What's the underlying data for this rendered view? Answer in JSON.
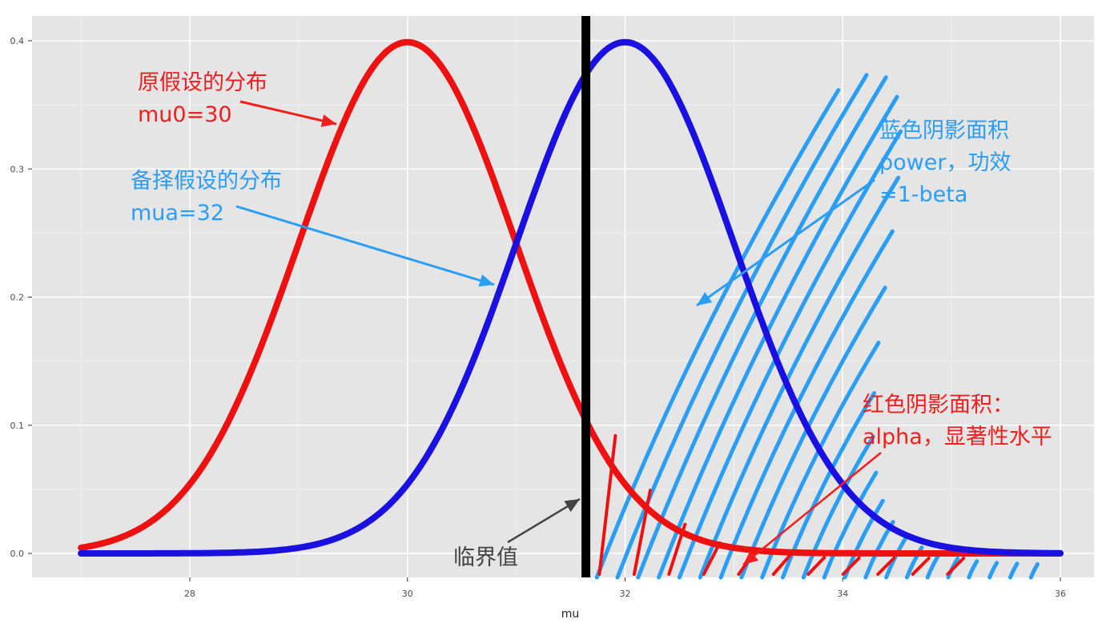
{
  "chart_data": {
    "type": "line",
    "title": "",
    "xlabel": "mu",
    "ylabel": "",
    "xlim": [
      27,
      36
    ],
    "ylim": [
      0,
      0.4
    ],
    "x_ticks": [
      "28",
      "30",
      "32",
      "34",
      "36"
    ],
    "x_tick_values": [
      28,
      30,
      32,
      34,
      36
    ],
    "y_ticks": [
      "0.0",
      "0.1",
      "0.2",
      "0.3",
      "0.4"
    ],
    "y_tick_values": [
      0,
      0.1,
      0.2,
      0.3,
      0.4
    ],
    "grid": true,
    "background": "#e5e5e5",
    "x": [
      27.0,
      27.5,
      28.0,
      28.5,
      29.0,
      29.5,
      30.0,
      30.5,
      31.0,
      31.5,
      32.0,
      32.5,
      33.0,
      33.5,
      34.0,
      34.5,
      35.0,
      35.5,
      36.0
    ],
    "series": [
      {
        "color": "#ee1111",
        "values": [
          0.004,
          0.018,
          0.054,
          0.13,
          0.242,
          0.352,
          0.399,
          0.352,
          0.242,
          0.13,
          0.054,
          0.018,
          0.004,
          0.001,
          0.0,
          0.0,
          0.0,
          0.0,
          0.0
        ]
      },
      {
        "color": "#1a10e0",
        "values": [
          0.0,
          0.0,
          0.0,
          0.0,
          0.001,
          0.004,
          0.054,
          0.13,
          0.242,
          0.352,
          0.399,
          0.352,
          0.242,
          0.13,
          0.054,
          0.018,
          0.004,
          0.001,
          0.0
        ]
      }
    ],
    "critical_value": 31.64,
    "annotations": [
      {
        "lines": [
          "原假设的分布",
          "mu0=30"
        ],
        "color": "#f21d1d"
      },
      {
        "lines": [
          "备择假设的分布",
          "mua=32"
        ],
        "color": "#2a9df4"
      },
      {
        "lines": [
          "蓝色阴影面积",
          "power，功效",
          "=1-beta"
        ],
        "color": "#2a9df4"
      },
      {
        "lines": [
          "红色阴影面积：",
          "alpha，显著性水平"
        ],
        "color": "#f21d1d"
      },
      {
        "lines": [
          "临界值"
        ],
        "color": "#444444"
      }
    ]
  }
}
